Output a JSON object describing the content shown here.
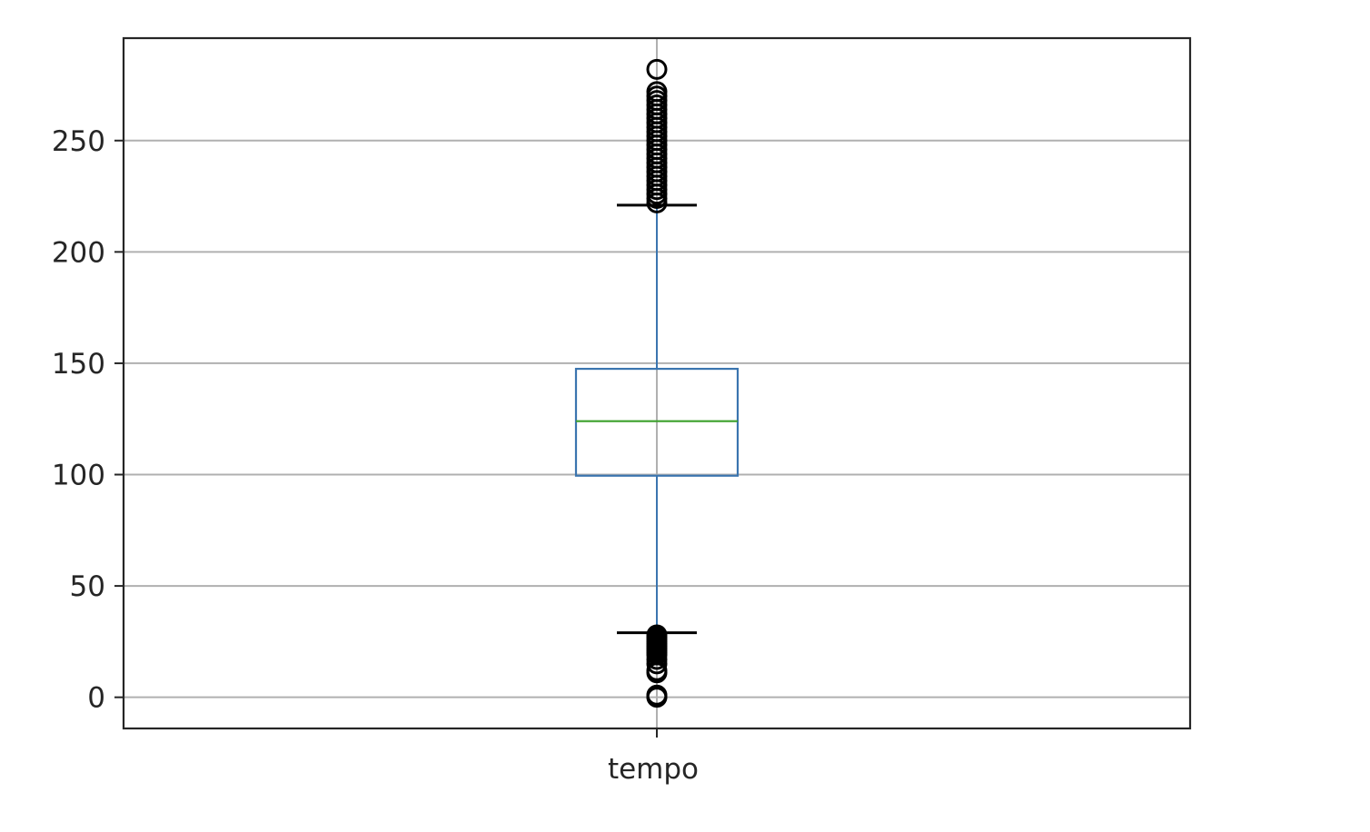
{
  "chart_data": {
    "type": "box",
    "title": "",
    "xlabel": "",
    "ylabel": "",
    "ylim": [
      -14,
      296
    ],
    "yticks": [
      0,
      50,
      100,
      150,
      200,
      250
    ],
    "ytick_labels": [
      "0",
      "50",
      "100",
      "150",
      "200",
      "250"
    ],
    "grid": true,
    "categories": [
      "tempo"
    ],
    "boxes": [
      {
        "category": "tempo",
        "whisker_low": 29,
        "q1": 99.5,
        "median": 124,
        "q3": 147.5,
        "whisker_high": 221,
        "outliers_low": [
          0,
          0.5,
          1,
          11,
          12,
          15,
          17,
          19,
          20,
          21,
          22,
          23,
          24,
          25,
          26,
          27,
          28
        ],
        "outliers_high": [
          222,
          224,
          226,
          228,
          230,
          232,
          234,
          236,
          238,
          240,
          242,
          244,
          246,
          248,
          250,
          252,
          254,
          256,
          258,
          260,
          262,
          264,
          266,
          268,
          270,
          272,
          282
        ]
      }
    ],
    "colors": {
      "box": "#3b75af",
      "whisker": "#3b75af",
      "median": "#3ca02c",
      "cap": "#000000",
      "flier": "#000000",
      "grid": "#b0b0b0",
      "frame": "#262626"
    }
  }
}
